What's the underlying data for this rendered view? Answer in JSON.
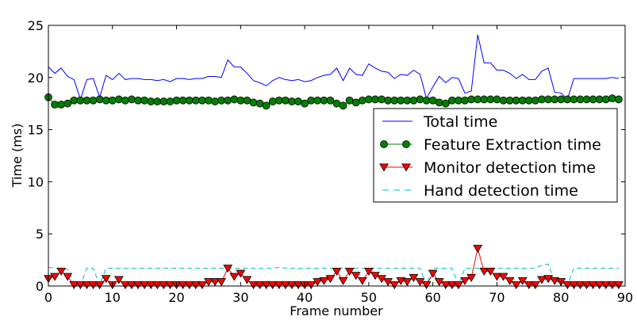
{
  "chart_data": {
    "type": "line",
    "title": "",
    "xlabel": "Frame number",
    "ylabel": "Time (ms)",
    "xlim": [
      0,
      90
    ],
    "ylim": [
      0,
      25
    ],
    "xticks": [
      "0",
      "10",
      "20",
      "30",
      "40",
      "50",
      "60",
      "70",
      "80",
      "90"
    ],
    "yticks": [
      "0",
      "5",
      "10",
      "15",
      "20",
      "25"
    ],
    "legend_position": "center-right",
    "x": [
      0,
      1,
      2,
      3,
      4,
      5,
      6,
      7,
      8,
      9,
      10,
      11,
      12,
      13,
      14,
      15,
      16,
      17,
      18,
      19,
      20,
      21,
      22,
      23,
      24,
      25,
      26,
      27,
      28,
      29,
      30,
      31,
      32,
      33,
      34,
      35,
      36,
      37,
      38,
      39,
      40,
      41,
      42,
      43,
      44,
      45,
      46,
      47,
      48,
      49,
      50,
      51,
      52,
      53,
      54,
      55,
      56,
      57,
      58,
      59,
      60,
      61,
      62,
      63,
      64,
      65,
      66,
      67,
      68,
      69,
      70,
      71,
      72,
      73,
      74,
      75,
      76,
      77,
      78,
      79,
      80,
      81,
      82,
      83,
      84,
      85,
      86,
      87,
      88,
      89
    ],
    "series": [
      {
        "name": "Total time",
        "color": "#0000ff",
        "marker": "none",
        "dash": "solid",
        "values": [
          21.0,
          20.4,
          20.9,
          20.1,
          19.8,
          17.9,
          19.8,
          19.9,
          18.1,
          20.2,
          19.8,
          20.4,
          19.8,
          19.9,
          19.9,
          19.8,
          19.8,
          19.7,
          19.8,
          19.6,
          19.9,
          19.9,
          19.8,
          19.9,
          19.9,
          20.1,
          20.1,
          20.0,
          21.7,
          21.0,
          21.0,
          20.4,
          19.7,
          19.5,
          19.2,
          19.7,
          20.0,
          19.8,
          19.7,
          19.8,
          19.6,
          19.7,
          20.0,
          20.2,
          20.3,
          20.9,
          19.7,
          20.9,
          20.3,
          20.2,
          21.3,
          20.9,
          20.6,
          20.5,
          19.9,
          20.3,
          20.2,
          20.7,
          20.3,
          18.0,
          19.1,
          20.1,
          19.5,
          20.0,
          19.9,
          18.5,
          18.7,
          24.1,
          21.4,
          21.4,
          20.7,
          20.7,
          20.4,
          19.9,
          20.3,
          19.8,
          19.8,
          20.6,
          20.9,
          18.6,
          18.5,
          17.9,
          19.9,
          19.9,
          19.9,
          19.9,
          19.9,
          19.9,
          20.0,
          19.9
        ]
      },
      {
        "name": "Feature Extraction time",
        "color": "#008000",
        "marker": "circle",
        "dash": "solid",
        "values": [
          18.1,
          17.4,
          17.4,
          17.5,
          17.8,
          17.8,
          17.8,
          17.8,
          17.9,
          17.8,
          17.8,
          17.9,
          17.8,
          17.9,
          17.8,
          17.8,
          17.7,
          17.7,
          17.7,
          17.7,
          17.8,
          17.8,
          17.8,
          17.8,
          17.8,
          17.8,
          17.7,
          17.8,
          17.8,
          17.9,
          17.8,
          17.8,
          17.6,
          17.5,
          17.3,
          17.7,
          17.8,
          17.8,
          17.7,
          17.7,
          17.5,
          17.8,
          17.8,
          17.8,
          17.8,
          17.5,
          17.3,
          17.8,
          17.6,
          17.8,
          17.9,
          17.9,
          17.9,
          17.8,
          17.8,
          17.8,
          17.8,
          17.8,
          17.9,
          17.8,
          17.8,
          17.6,
          17.5,
          17.8,
          17.8,
          17.8,
          17.9,
          17.9,
          17.9,
          17.9,
          17.9,
          17.8,
          17.8,
          17.8,
          17.8,
          17.8,
          17.8,
          17.9,
          17.9,
          17.9,
          17.9,
          17.9,
          17.9,
          17.9,
          17.9,
          17.9,
          17.9,
          17.9,
          18.0,
          17.9
        ]
      },
      {
        "name": "Monitor detection time",
        "color": "#ff0000",
        "marker": "triangle-down",
        "dash": "solid",
        "values": [
          0.7,
          0.9,
          1.4,
          0.9,
          0.1,
          0.1,
          0.1,
          0.1,
          0.1,
          0.7,
          0.1,
          0.6,
          0.1,
          0.1,
          0.1,
          0.1,
          0.1,
          0.1,
          0.1,
          0.1,
          0.1,
          0.1,
          0.1,
          0.1,
          0.1,
          0.4,
          0.4,
          0.4,
          1.7,
          0.9,
          1.2,
          0.6,
          0.1,
          0.1,
          0.1,
          0.1,
          0.1,
          0.1,
          0.1,
          0.1,
          0.1,
          0.1,
          0.4,
          0.5,
          0.7,
          1.4,
          0.5,
          1.4,
          1.0,
          0.5,
          1.4,
          1.0,
          0.7,
          0.4,
          0.1,
          0.5,
          0.4,
          0.8,
          0.4,
          0.1,
          1.2,
          0.4,
          0.1,
          0.1,
          0.1,
          0.5,
          0.8,
          3.6,
          1.4,
          1.4,
          0.9,
          0.9,
          0.5,
          0.1,
          0.5,
          0.1,
          0.1,
          0.6,
          0.7,
          0.5,
          0.4,
          0.1,
          0.1,
          0.1,
          0.1,
          0.1,
          0.1,
          0.1,
          0.1,
          0.1
        ]
      },
      {
        "name": "Hand detection time",
        "color": "#00bfbf",
        "marker": "none",
        "dash": "dashed",
        "values": [
          1.8,
          1.7,
          1.7,
          1.6,
          0.3,
          0.1,
          1.7,
          1.7,
          0.1,
          1.7,
          1.7,
          1.7,
          1.7,
          1.7,
          1.7,
          1.7,
          1.7,
          1.7,
          1.7,
          1.7,
          1.7,
          1.7,
          1.7,
          1.7,
          1.7,
          1.7,
          1.7,
          1.7,
          1.7,
          1.7,
          1.7,
          1.7,
          1.7,
          1.7,
          1.7,
          1.7,
          1.8,
          1.7,
          1.7,
          1.7,
          1.7,
          1.7,
          1.7,
          1.7,
          1.7,
          1.7,
          1.7,
          1.7,
          1.7,
          1.7,
          1.7,
          1.7,
          1.7,
          1.7,
          1.7,
          1.7,
          1.7,
          1.7,
          1.7,
          0.1,
          1.7,
          1.7,
          1.7,
          1.7,
          0.1,
          1.7,
          1.7,
          1.7,
          1.7,
          1.7,
          1.7,
          1.7,
          1.7,
          1.7,
          1.7,
          1.7,
          1.7,
          2.0,
          2.1,
          0.5,
          0.3,
          0.1,
          1.7,
          1.7,
          1.7,
          1.7,
          1.7,
          1.7,
          1.7,
          1.7
        ]
      }
    ]
  }
}
